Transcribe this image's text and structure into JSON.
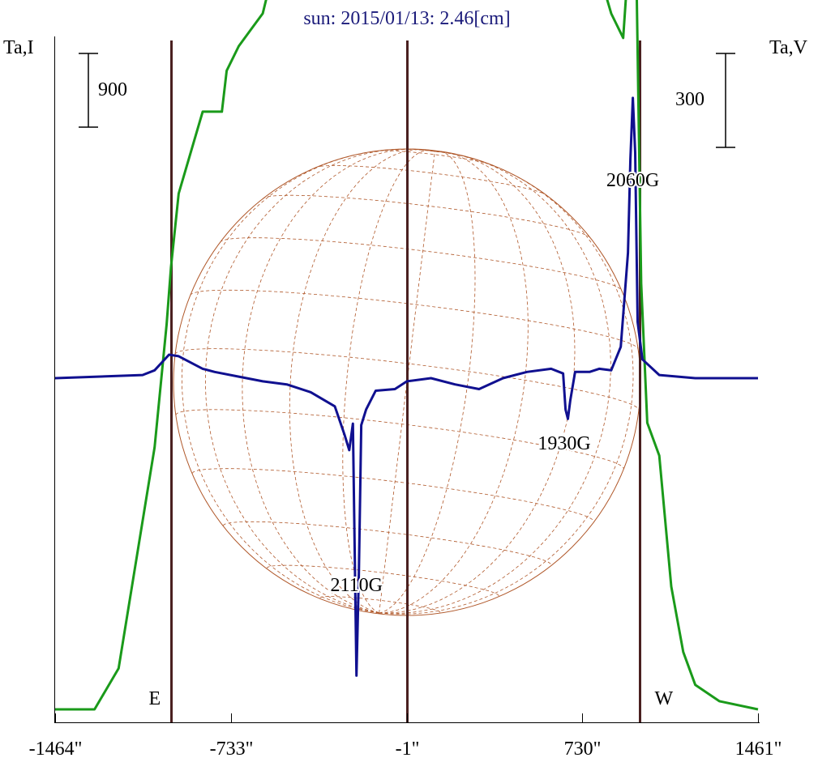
{
  "chart_data": {
    "type": "line",
    "title": "sun: 2015/01/13: 2.46[cm]",
    "left_axis_label": "Ta,I",
    "right_axis_label": "Ta,V",
    "x_ticks": [
      "-1464\"",
      "-733\"",
      "-1\"",
      "730\"",
      "1461\""
    ],
    "x_tick_values": [
      -1464,
      -733,
      -1,
      730,
      1461
    ],
    "xlim": [
      -1464,
      1461
    ],
    "limb_markers": [
      {
        "label": "E",
        "x": -982
      },
      {
        "label": "",
        "x": -1
      },
      {
        "label": "W",
        "x": 970
      }
    ],
    "scale_bars": {
      "intensity": {
        "value": "900",
        "side": "left"
      },
      "polarization": {
        "value": "300",
        "side": "right"
      }
    },
    "annotations": [
      {
        "label": "2110G",
        "x": -210
      },
      {
        "label": "1930G",
        "x": 655
      },
      {
        "label": "2060G",
        "x": 940
      }
    ],
    "series": [
      {
        "name": "",
        "quantity": "I",
        "units": "Ta (900 per scale bar)",
        "baseline": 0,
        "color": "#1a9a1a",
        "points": [
          [
            -1464,
            0
          ],
          [
            -1300,
            0
          ],
          [
            -1200,
            500
          ],
          [
            -1100,
            2300
          ],
          [
            -1050,
            3200
          ],
          [
            -1000,
            4700
          ],
          [
            -982,
            5400
          ],
          [
            -950,
            6300
          ],
          [
            -900,
            6800
          ],
          [
            -850,
            7300
          ],
          [
            -800,
            7300
          ],
          [
            -770,
            7300
          ],
          [
            -750,
            7800
          ],
          [
            -700,
            8100
          ],
          [
            -650,
            8300
          ],
          [
            -600,
            8500
          ],
          [
            -550,
            9100
          ],
          [
            -500,
            9400
          ],
          [
            -450,
            9500
          ],
          [
            -400,
            9500
          ],
          [
            -350,
            9600
          ],
          [
            -300,
            9700
          ],
          [
            -255,
            10400
          ],
          [
            -225,
            9800
          ],
          [
            -200,
            9700
          ],
          [
            -160,
            9800
          ],
          [
            -100,
            9700
          ],
          [
            -50,
            10000
          ],
          [
            0,
            10100
          ],
          [
            50,
            10000
          ],
          [
            100,
            10100
          ],
          [
            150,
            10400
          ],
          [
            200,
            10500
          ],
          [
            260,
            10300
          ],
          [
            300,
            10000
          ],
          [
            350,
            9900
          ],
          [
            400,
            9800
          ],
          [
            450,
            9600
          ],
          [
            500,
            9400
          ],
          [
            550,
            9500
          ],
          [
            600,
            9700
          ],
          [
            620,
            10000
          ],
          [
            650,
            9700
          ],
          [
            700,
            9400
          ],
          [
            760,
            9300
          ],
          [
            800,
            9000
          ],
          [
            850,
            8500
          ],
          [
            900,
            8200
          ],
          [
            930,
            9500
          ],
          [
            945,
            10200
          ],
          [
            955,
            9000
          ],
          [
            975,
            5200
          ],
          [
            1000,
            3500
          ],
          [
            1050,
            3100
          ],
          [
            1100,
            1500
          ],
          [
            1150,
            700
          ],
          [
            1200,
            300
          ],
          [
            1300,
            100
          ],
          [
            1461,
            0
          ]
        ]
      },
      {
        "name": "",
        "quantity": "V",
        "units": "Ta (300 per scale bar)",
        "baseline": 0,
        "color": "#101090",
        "points": [
          [
            -1464,
            0
          ],
          [
            -1100,
            10
          ],
          [
            -1050,
            25
          ],
          [
            -990,
            75
          ],
          [
            -950,
            70
          ],
          [
            -900,
            50
          ],
          [
            -850,
            30
          ],
          [
            -800,
            20
          ],
          [
            -700,
            5
          ],
          [
            -600,
            -10
          ],
          [
            -500,
            -20
          ],
          [
            -400,
            -45
          ],
          [
            -300,
            -90
          ],
          [
            -260,
            -180
          ],
          [
            -240,
            -230
          ],
          [
            -225,
            -145
          ],
          [
            -210,
            -950
          ],
          [
            -200,
            -620
          ],
          [
            -190,
            -150
          ],
          [
            -170,
            -100
          ],
          [
            -130,
            -40
          ],
          [
            -50,
            -35
          ],
          [
            0,
            -10
          ],
          [
            100,
            0
          ],
          [
            200,
            -20
          ],
          [
            300,
            -35
          ],
          [
            400,
            0
          ],
          [
            500,
            20
          ],
          [
            600,
            30
          ],
          [
            650,
            15
          ],
          [
            660,
            -100
          ],
          [
            670,
            -130
          ],
          [
            680,
            -70
          ],
          [
            700,
            20
          ],
          [
            760,
            20
          ],
          [
            800,
            30
          ],
          [
            850,
            25
          ],
          [
            890,
            100
          ],
          [
            920,
            400
          ],
          [
            930,
            700
          ],
          [
            940,
            895
          ],
          [
            950,
            720
          ],
          [
            960,
            180
          ],
          [
            980,
            60
          ],
          [
            1050,
            10
          ],
          [
            1200,
            0
          ],
          [
            1461,
            0
          ]
        ]
      }
    ],
    "grid": false,
    "background_overlay": "solar disk heliographic grid"
  }
}
